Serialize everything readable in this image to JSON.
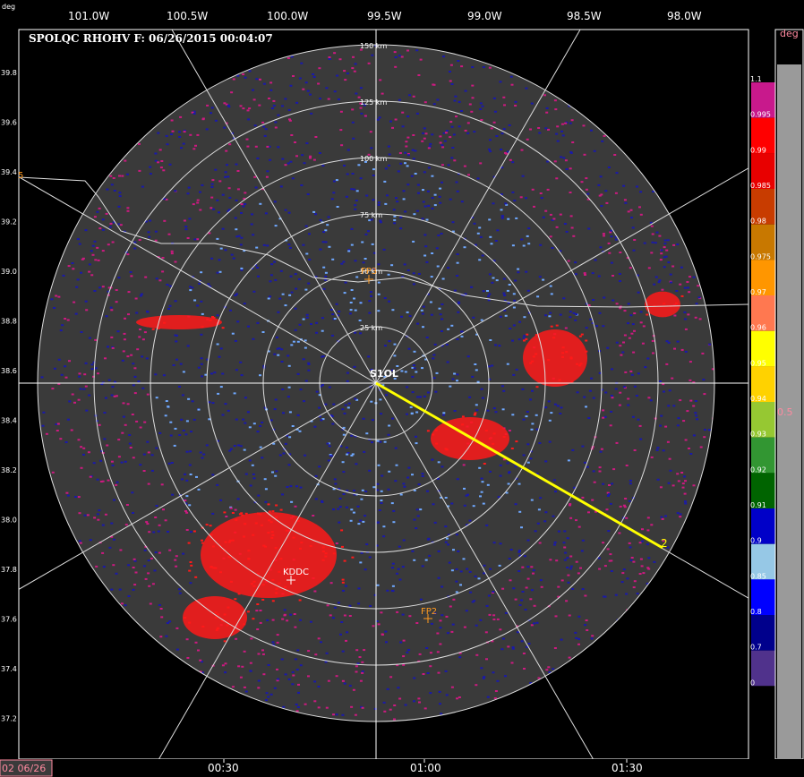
{
  "header": {
    "title": "SPOLQC RHOHV F: 06/26/2015 00:04:07",
    "corner_unit": "deg",
    "lon_ticks": [
      "101.0W",
      "100.5W",
      "100.0W",
      "99.5W",
      "99.0W",
      "98.5W",
      "98.0W"
    ],
    "lat_ticks": [
      "39.8",
      "39.6",
      "39.4",
      "39.2",
      "39.0",
      "38.8",
      "38.6",
      "38.4",
      "38.2",
      "38.0",
      "37.8",
      "37.6",
      "37.4",
      "37.2"
    ],
    "lat_prefix": "39.",
    "lat_side_digit": "5"
  },
  "radar": {
    "site_label": "S1OL",
    "range_rings_km": [
      "150 km",
      "125 km",
      "100 km",
      "75 km",
      "50 km",
      "25 km"
    ],
    "markers": [
      {
        "label": "KDDC",
        "color": "#ffffff"
      },
      {
        "label": "FP2",
        "color": "#ff9a20"
      },
      {
        "label": "FP3",
        "color": "#ff9a20"
      }
    ],
    "track_label": "2",
    "colors": {
      "background": "#3a3a3a",
      "low": "#1a1aaa",
      "high": "#ff1a1a",
      "pink": "#cc1a80"
    }
  },
  "colorbar": {
    "stops": [
      {
        "label": "1.1",
        "color": "#c8198c"
      },
      {
        "label": "0.995",
        "color": "#ff0000"
      },
      {
        "label": "0.99",
        "color": "#e80000"
      },
      {
        "label": "0.985",
        "color": "#c83c00"
      },
      {
        "label": "0.98",
        "color": "#c87800"
      },
      {
        "label": "0.975",
        "color": "#ff9600"
      },
      {
        "label": "0.97",
        "color": "#ff7850"
      },
      {
        "label": "0.96",
        "color": "#ffff00"
      },
      {
        "label": "0.95",
        "color": "#ffd200"
      },
      {
        "label": "0.94",
        "color": "#96c832"
      },
      {
        "label": "0.93",
        "color": "#329632"
      },
      {
        "label": "0.92",
        "color": "#006400"
      },
      {
        "label": "0.91",
        "color": "#0000c8"
      },
      {
        "label": "0.9",
        "color": "#96c8e6"
      },
      {
        "label": "0.85",
        "color": "#0000ff"
      },
      {
        "label": "0.8",
        "color": "#00008c"
      },
      {
        "label": "0.7",
        "color": "#50328c"
      },
      {
        "label": "0",
        "color": "#000000"
      }
    ],
    "right_unit": "deg",
    "right_value": "0.5"
  },
  "timeline": {
    "date_label": "02 06/26",
    "ticks": [
      "00:30",
      "01:00",
      "01:30"
    ]
  }
}
